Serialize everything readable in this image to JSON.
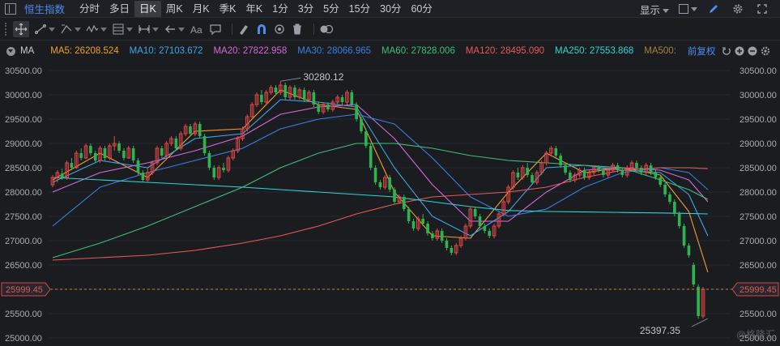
{
  "topbar": {
    "index_name": "恒生指数",
    "periods": [
      "分时",
      "多日",
      "日K",
      "周K",
      "月K",
      "季K",
      "年K",
      "1分",
      "3分",
      "5分",
      "15分",
      "30分",
      "60分"
    ],
    "active_period": "日K",
    "display_label": "显示"
  },
  "ma_bar": {
    "label": "MA",
    "adjust_label": "前复权",
    "items": [
      {
        "text": "MA5: 26208.524",
        "color": "#f0a030"
      },
      {
        "text": "MA10: 27103.672",
        "color": "#3ea6e8"
      },
      {
        "text": "MA20: 27822.958",
        "color": "#d36bd8"
      },
      {
        "text": "MA30: 28066.965",
        "color": "#3a7fe0"
      },
      {
        "text": "MA60: 27828.006",
        "color": "#3fbf7a"
      },
      {
        "text": "MA120: 28495.090",
        "color": "#e55a5a"
      },
      {
        "text": "MA250: 27553.868",
        "color": "#2fd5d5"
      },
      {
        "text": "MA500:",
        "color": "#a8803a"
      }
    ]
  },
  "colors": {
    "up": "#e04848",
    "down": "#2fb34f",
    "grid": "#262830",
    "price_line": "#c0813a"
  },
  "watermark": "@格隆汇",
  "chart_data": {
    "type": "candlestick",
    "ylim": [
      24950,
      30650
    ],
    "yticks": [
      25000,
      25500,
      26000,
      26500,
      27000,
      27500,
      28000,
      28500,
      29000,
      29500,
      30000,
      30500
    ],
    "ytick_labels": [
      "25000.00",
      "25500.00",
      "26000.00",
      "26500.00",
      "27000.00",
      "27500.00",
      "28000.00",
      "28500.00",
      "29000.00",
      "29500.00",
      "30000.00",
      "30500.00"
    ],
    "current_price": 25999.45,
    "current_price_label": "25999.45",
    "high_annotation": {
      "index": 48,
      "value": 30280.12,
      "label": "30280.12"
    },
    "low_annotation": {
      "index": 138,
      "value": 25397.35,
      "label": "25397.35"
    },
    "candles": [
      [
        28150,
        28300,
        28100,
        28350
      ],
      [
        28300,
        28400,
        28200,
        28450
      ],
      [
        28380,
        28300,
        28250,
        28480
      ],
      [
        28300,
        28600,
        28250,
        28650
      ],
      [
        28600,
        28500,
        28450,
        28700
      ],
      [
        28500,
        28800,
        28480,
        28850
      ],
      [
        28800,
        28700,
        28650,
        28900
      ],
      [
        28700,
        28950,
        28680,
        29000
      ],
      [
        28950,
        28800,
        28750,
        29000
      ],
      [
        28800,
        28650,
        28600,
        28850
      ],
      [
        28650,
        28900,
        28600,
        28950
      ],
      [
        28900,
        28700,
        28650,
        28950
      ],
      [
        28700,
        28950,
        28650,
        29000
      ],
      [
        28950,
        29000,
        28850,
        29150
      ],
      [
        29000,
        28850,
        28800,
        29050
      ],
      [
        28850,
        28700,
        28650,
        28900
      ],
      [
        28700,
        28900,
        28680,
        28950
      ],
      [
        28900,
        28650,
        28600,
        28950
      ],
      [
        28650,
        28400,
        28350,
        28700
      ],
      [
        28400,
        28250,
        28200,
        28450
      ],
      [
        28250,
        28400,
        28200,
        28500
      ],
      [
        28400,
        28600,
        28350,
        28650
      ],
      [
        28600,
        28900,
        28550,
        28950
      ],
      [
        28900,
        28750,
        28700,
        28950
      ],
      [
        28750,
        29000,
        28700,
        29050
      ],
      [
        29000,
        29100,
        28950,
        29150
      ],
      [
        29100,
        28900,
        28850,
        29150
      ],
      [
        28900,
        29200,
        28850,
        29250
      ],
      [
        29200,
        29350,
        29150,
        29400
      ],
      [
        29350,
        29200,
        29150,
        29400
      ],
      [
        29200,
        29400,
        29150,
        29450
      ],
      [
        29400,
        29150,
        29100,
        29450
      ],
      [
        29150,
        28800,
        28750,
        29200
      ],
      [
        28800,
        28500,
        28450,
        28850
      ],
      [
        28500,
        28300,
        28250,
        28550
      ],
      [
        28300,
        28500,
        28250,
        28550
      ],
      [
        28500,
        28450,
        28400,
        28600
      ],
      [
        28450,
        28700,
        28400,
        28750
      ],
      [
        28700,
        28850,
        28650,
        28900
      ],
      [
        28850,
        29100,
        28800,
        29150
      ],
      [
        29100,
        29300,
        29050,
        29350
      ],
      [
        29300,
        29550,
        29250,
        29600
      ],
      [
        29550,
        29800,
        29500,
        29850
      ],
      [
        29800,
        30000,
        29750,
        30050
      ],
      [
        30000,
        29850,
        29800,
        30100
      ],
      [
        29850,
        30050,
        29800,
        30100
      ],
      [
        30050,
        30150,
        30000,
        30200
      ],
      [
        30150,
        30050,
        30000,
        30200
      ],
      [
        30050,
        30200,
        30000,
        30280
      ],
      [
        30200,
        29950,
        29900,
        30250
      ],
      [
        29950,
        30150,
        29900,
        30200
      ],
      [
        30150,
        29950,
        29900,
        30200
      ],
      [
        29950,
        30100,
        29900,
        30150
      ],
      [
        30100,
        29900,
        29850,
        30150
      ],
      [
        29900,
        30050,
        29850,
        30100
      ],
      [
        30050,
        29800,
        29750,
        30100
      ],
      [
        29800,
        29650,
        29600,
        29850
      ],
      [
        29650,
        29800,
        29600,
        29850
      ],
      [
        29800,
        29700,
        29650,
        29850
      ],
      [
        29700,
        29850,
        29650,
        29900
      ],
      [
        29850,
        29950,
        29800,
        30000
      ],
      [
        29950,
        29850,
        29800,
        30000
      ],
      [
        29850,
        30050,
        29800,
        30100
      ],
      [
        30050,
        29800,
        29750,
        30100
      ],
      [
        29800,
        29500,
        29450,
        29850
      ],
      [
        29500,
        29250,
        29200,
        29550
      ],
      [
        29250,
        28950,
        28900,
        29300
      ],
      [
        28950,
        28500,
        28450,
        29000
      ],
      [
        28500,
        28200,
        28150,
        28550
      ],
      [
        28200,
        28100,
        28050,
        28250
      ],
      [
        28100,
        28300,
        28050,
        28350
      ],
      [
        28300,
        28050,
        28000,
        28350
      ],
      [
        28050,
        27800,
        27750,
        28100
      ],
      [
        27800,
        27900,
        27750,
        27950
      ],
      [
        27900,
        27650,
        27600,
        27950
      ],
      [
        27650,
        27400,
        27350,
        27700
      ],
      [
        27400,
        27250,
        27200,
        27450
      ],
      [
        27250,
        27450,
        27200,
        27500
      ],
      [
        27450,
        27350,
        27300,
        27550
      ],
      [
        27350,
        27150,
        27100,
        27400
      ],
      [
        27150,
        27050,
        27000,
        27200
      ],
      [
        27050,
        27200,
        27000,
        27250
      ],
      [
        27200,
        27000,
        26950,
        27250
      ],
      [
        27000,
        26850,
        26800,
        27050
      ],
      [
        26850,
        26750,
        26700,
        26900
      ],
      [
        26750,
        26900,
        26700,
        26950
      ],
      [
        26900,
        27050,
        26850,
        27100
      ],
      [
        27050,
        27300,
        27000,
        27350
      ],
      [
        27300,
        27650,
        27250,
        27700
      ],
      [
        27650,
        27500,
        27450,
        27700
      ],
      [
        27500,
        27300,
        27250,
        27550
      ],
      [
        27300,
        27200,
        27150,
        27350
      ],
      [
        27200,
        27100,
        27050,
        27250
      ],
      [
        27100,
        27300,
        27050,
        27350
      ],
      [
        27300,
        27550,
        27250,
        27600
      ],
      [
        27550,
        27800,
        27500,
        27850
      ],
      [
        27800,
        28100,
        27750,
        28150
      ],
      [
        28100,
        28400,
        28050,
        28450
      ],
      [
        28400,
        28300,
        28250,
        28500
      ],
      [
        28300,
        28500,
        28250,
        28550
      ],
      [
        28500,
        28350,
        28300,
        28600
      ],
      [
        28350,
        28200,
        28150,
        28400
      ],
      [
        28200,
        28400,
        28150,
        28450
      ],
      [
        28400,
        28600,
        28350,
        28650
      ],
      [
        28600,
        28800,
        28550,
        28850
      ],
      [
        28800,
        28900,
        28750,
        28950
      ],
      [
        28900,
        28750,
        28700,
        28950
      ],
      [
        28750,
        28550,
        28500,
        28800
      ],
      [
        28550,
        28400,
        28350,
        28600
      ],
      [
        28400,
        28250,
        28200,
        28450
      ],
      [
        28250,
        28350,
        28200,
        28400
      ],
      [
        28350,
        28450,
        28300,
        28500
      ],
      [
        28450,
        28300,
        28250,
        28500
      ],
      [
        28300,
        28400,
        28250,
        28450
      ],
      [
        28400,
        28500,
        28350,
        28550
      ],
      [
        28500,
        28450,
        28400,
        28550
      ],
      [
        28450,
        28350,
        28300,
        28500
      ],
      [
        28350,
        28450,
        28300,
        28500
      ],
      [
        28450,
        28550,
        28400,
        28600
      ],
      [
        28550,
        28450,
        28400,
        28600
      ],
      [
        28450,
        28350,
        28300,
        28500
      ],
      [
        28350,
        28500,
        28300,
        28550
      ],
      [
        28500,
        28600,
        28450,
        28650
      ],
      [
        28600,
        28500,
        28450,
        28650
      ],
      [
        28500,
        28400,
        28350,
        28550
      ],
      [
        28400,
        28550,
        28350,
        28600
      ],
      [
        28550,
        28400,
        28350,
        28600
      ],
      [
        28400,
        28300,
        28250,
        28450
      ],
      [
        28300,
        28150,
        28100,
        28350
      ],
      [
        28150,
        27950,
        27900,
        28200
      ],
      [
        27950,
        27800,
        27750,
        28000
      ],
      [
        27800,
        27550,
        27500,
        27850
      ],
      [
        27550,
        27300,
        27250,
        27600
      ],
      [
        27300,
        26900,
        26850,
        27350
      ],
      [
        26900,
        26700,
        26650,
        26950
      ],
      [
        26500,
        26100,
        26050,
        26550
      ],
      [
        26050,
        25450,
        25397,
        26100
      ],
      [
        25450,
        25999.45,
        25400,
        26050
      ]
    ],
    "ma_lines": [
      {
        "name": "MA5",
        "color": "#f0a030",
        "x": [
          0,
          10,
          20,
          30,
          40,
          48,
          56,
          64,
          72,
          80,
          88,
          96,
          104,
          112,
          120,
          128,
          134,
          138
        ],
        "y": [
          28250,
          28800,
          28300,
          29250,
          29300,
          30100,
          29800,
          29700,
          28000,
          27100,
          27050,
          28000,
          28800,
          28400,
          28500,
          28350,
          27600,
          26350
        ]
      },
      {
        "name": "MA10",
        "color": "#3ea6e8",
        "x": [
          0,
          10,
          20,
          30,
          40,
          48,
          56,
          64,
          72,
          80,
          88,
          96,
          104,
          112,
          120,
          128,
          134,
          138
        ],
        "y": [
          28200,
          28650,
          28500,
          29100,
          29200,
          29900,
          29850,
          29750,
          28500,
          27500,
          27100,
          27600,
          28500,
          28550,
          28450,
          28400,
          27950,
          27100
        ]
      },
      {
        "name": "MA20",
        "color": "#d36bd8",
        "x": [
          0,
          10,
          20,
          30,
          40,
          48,
          56,
          64,
          72,
          80,
          88,
          96,
          104,
          112,
          120,
          128,
          134,
          138
        ],
        "y": [
          28000,
          28400,
          28600,
          28850,
          29150,
          29600,
          29750,
          29800,
          29100,
          28150,
          27400,
          27400,
          28000,
          28450,
          28500,
          28450,
          28250,
          27800
        ]
      },
      {
        "name": "MA30",
        "color": "#3a7fe0",
        "x": [
          0,
          10,
          20,
          30,
          40,
          48,
          56,
          64,
          72,
          80,
          88,
          96,
          104,
          112,
          120,
          128,
          134,
          138
        ],
        "y": [
          27300,
          28100,
          28400,
          28650,
          28900,
          29300,
          29500,
          29600,
          29400,
          28700,
          27900,
          27500,
          27650,
          28100,
          28400,
          28500,
          28400,
          28050
        ]
      },
      {
        "name": "MA60",
        "color": "#3fbf7a",
        "x": [
          0,
          10,
          20,
          30,
          40,
          48,
          56,
          64,
          72,
          80,
          88,
          96,
          104,
          112,
          120,
          128,
          134,
          138
        ],
        "y": [
          26650,
          26950,
          27300,
          27700,
          28100,
          28500,
          28800,
          29000,
          29000,
          28900,
          28750,
          28650,
          28600,
          28550,
          28500,
          28250,
          28050,
          27850
        ]
      },
      {
        "name": "MA120",
        "color": "#e55a5a",
        "x": [
          0,
          10,
          20,
          30,
          40,
          48,
          56,
          64,
          72,
          80,
          88,
          96,
          104,
          112,
          120,
          128,
          134,
          138
        ],
        "y": [
          26600,
          26650,
          26700,
          26800,
          26950,
          27100,
          27300,
          27550,
          27750,
          27900,
          27950,
          28000,
          28100,
          28300,
          28450,
          28500,
          28500,
          28480
        ]
      },
      {
        "name": "MA250",
        "color": "#2fd5d5",
        "x": [
          0,
          10,
          20,
          30,
          40,
          48,
          56,
          64,
          72,
          80,
          88,
          96,
          104,
          112,
          120,
          128,
          134,
          138
        ],
        "y": [
          28300,
          28250,
          28200,
          28150,
          28100,
          28050,
          28000,
          27950,
          27900,
          27800,
          27700,
          27620,
          27600,
          27590,
          27580,
          27570,
          27560,
          27550
        ]
      }
    ]
  }
}
